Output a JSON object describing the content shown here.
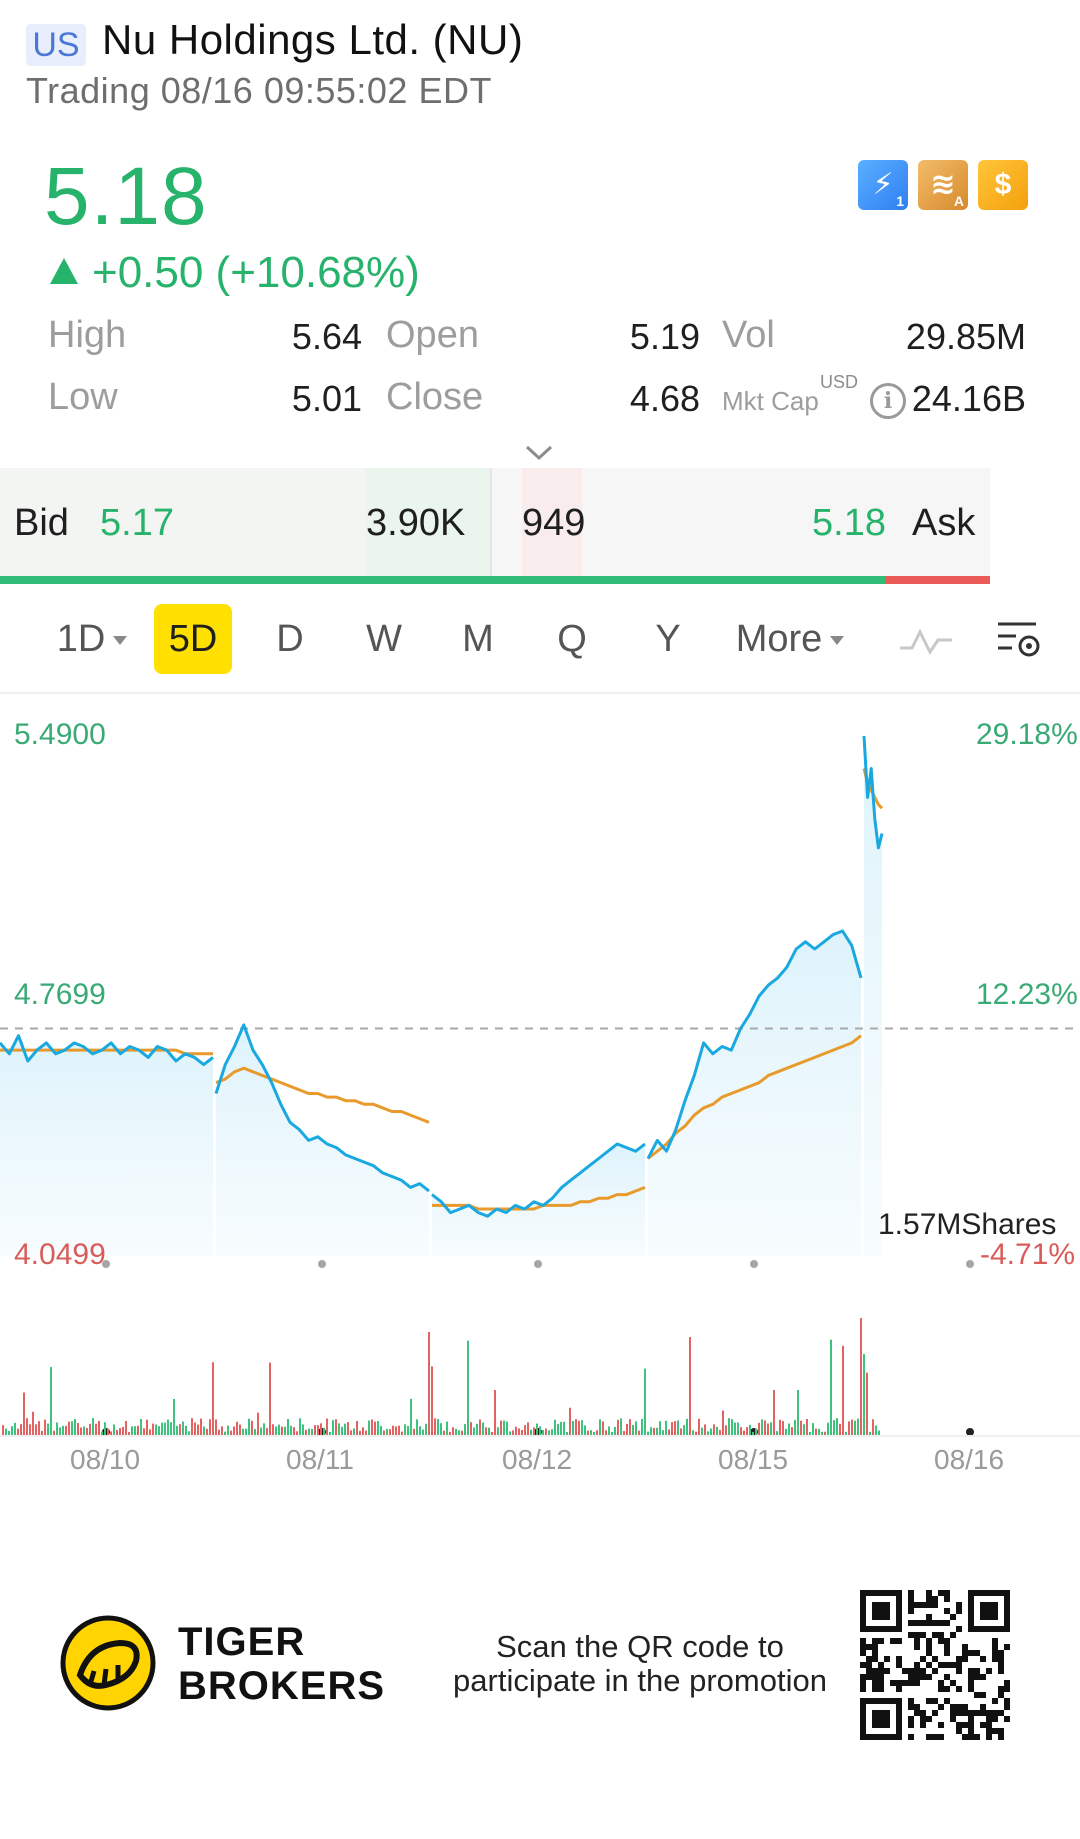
{
  "header": {
    "market": "US",
    "name": "Nu Holdings Ltd. (NU)",
    "status": "Trading 08/16 09:55:02 EDT"
  },
  "quote": {
    "last": "5.18",
    "change": "+0.50 (+10.68%)",
    "stats": {
      "high_label": "High",
      "high": "5.64",
      "open_label": "Open",
      "open": "5.19",
      "vol_label": "Vol",
      "vol": "29.85M",
      "low_label": "Low",
      "low": "5.01",
      "close_label": "Close",
      "close": "4.68",
      "mktcap_label": "Mkt Cap",
      "mktcap_currency": "USD",
      "mktcap": "24.16B"
    },
    "badges": [
      "flash-1-icon",
      "stack-a-icon",
      "dollar-icon"
    ]
  },
  "bidask": {
    "bid_label": "Bid",
    "bid": "5.17",
    "bid_size": "3.90K",
    "ask_size": "949",
    "ask": "5.18",
    "ask_label": "Ask",
    "bid_ratio": 0.895
  },
  "tabs": [
    {
      "label": "1D",
      "dropdown": true
    },
    {
      "label": "5D",
      "active": true
    },
    {
      "label": "D"
    },
    {
      "label": "W"
    },
    {
      "label": "M"
    },
    {
      "label": "Q"
    },
    {
      "label": "Y"
    },
    {
      "label": "More",
      "dropdown": true
    }
  ],
  "chart_data": {
    "type": "line",
    "title": "",
    "price_axis": {
      "top": "5.4900",
      "mid": "4.7699",
      "bottom": "4.0499"
    },
    "pct_axis": {
      "top": "29.18%",
      "mid": "12.23%",
      "bottom": "-4.71%"
    },
    "ylim": [
      4.0499,
      5.49
    ],
    "reference_close": 4.68,
    "x_labels": [
      "08/10",
      "08/11",
      "08/12",
      "08/15",
      "08/16"
    ],
    "volume_label": "1.57MShares",
    "colors": {
      "price": "#1aa8e0",
      "avg": "#e89a2c",
      "vol_up": "#3fc27e",
      "vol_down": "#e36363"
    },
    "series": [
      {
        "day": "08/10",
        "price": [
          4.64,
          4.61,
          4.66,
          4.59,
          4.62,
          4.64,
          4.61,
          4.62,
          4.64,
          4.63,
          4.61,
          4.62,
          4.64,
          4.61,
          4.63,
          4.62,
          4.6,
          4.63,
          4.62,
          4.59,
          4.61,
          4.6,
          4.58,
          4.6
        ],
        "avg": [
          4.62,
          4.62,
          4.62,
          4.62,
          4.62,
          4.62,
          4.62,
          4.62,
          4.62,
          4.62,
          4.62,
          4.62,
          4.62,
          4.62,
          4.62,
          4.62,
          4.62,
          4.62,
          4.62,
          4.62,
          4.61,
          4.61,
          4.61,
          4.61
        ]
      },
      {
        "day": "08/11",
        "price": [
          4.5,
          4.58,
          4.63,
          4.69,
          4.62,
          4.58,
          4.53,
          4.47,
          4.42,
          4.4,
          4.37,
          4.38,
          4.36,
          4.35,
          4.33,
          4.32,
          4.31,
          4.3,
          4.28,
          4.27,
          4.26,
          4.24,
          4.25,
          4.23
        ],
        "avg": [
          4.53,
          4.54,
          4.56,
          4.57,
          4.56,
          4.55,
          4.54,
          4.53,
          4.52,
          4.51,
          4.5,
          4.5,
          4.49,
          4.49,
          4.48,
          4.48,
          4.47,
          4.47,
          4.46,
          4.45,
          4.45,
          4.44,
          4.43,
          4.42
        ]
      },
      {
        "day": "08/12",
        "price": [
          4.22,
          4.2,
          4.17,
          4.18,
          4.19,
          4.17,
          4.16,
          4.18,
          4.17,
          4.19,
          4.18,
          4.2,
          4.19,
          4.21,
          4.24,
          4.26,
          4.28,
          4.3,
          4.32,
          4.34,
          4.36,
          4.35,
          4.34,
          4.36
        ],
        "avg": [
          4.19,
          4.19,
          4.19,
          4.19,
          4.19,
          4.18,
          4.18,
          4.18,
          4.18,
          4.18,
          4.18,
          4.18,
          4.19,
          4.19,
          4.19,
          4.19,
          4.2,
          4.2,
          4.21,
          4.21,
          4.22,
          4.22,
          4.23,
          4.24
        ]
      },
      {
        "day": "08/15",
        "price": [
          4.32,
          4.37,
          4.34,
          4.4,
          4.48,
          4.55,
          4.64,
          4.61,
          4.63,
          4.62,
          4.68,
          4.72,
          4.77,
          4.8,
          4.82,
          4.85,
          4.9,
          4.92,
          4.9,
          4.92,
          4.94,
          4.95,
          4.91,
          4.82
        ],
        "avg": [
          4.32,
          4.34,
          4.36,
          4.39,
          4.41,
          4.44,
          4.46,
          4.47,
          4.49,
          4.5,
          4.51,
          4.52,
          4.53,
          4.55,
          4.56,
          4.57,
          4.58,
          4.59,
          4.6,
          4.61,
          4.62,
          4.63,
          4.64,
          4.66
        ]
      },
      {
        "day": "08/16",
        "price": [
          5.49,
          5.32,
          5.4,
          5.26,
          5.18,
          5.22
        ],
        "avg": [
          5.4,
          5.36,
          5.34,
          5.32,
          5.3,
          5.29
        ]
      }
    ]
  },
  "footer": {
    "brand_line1": "TIGER",
    "brand_line2": "BROKERS",
    "promo": "Scan the QR code to participate in the promotion"
  }
}
